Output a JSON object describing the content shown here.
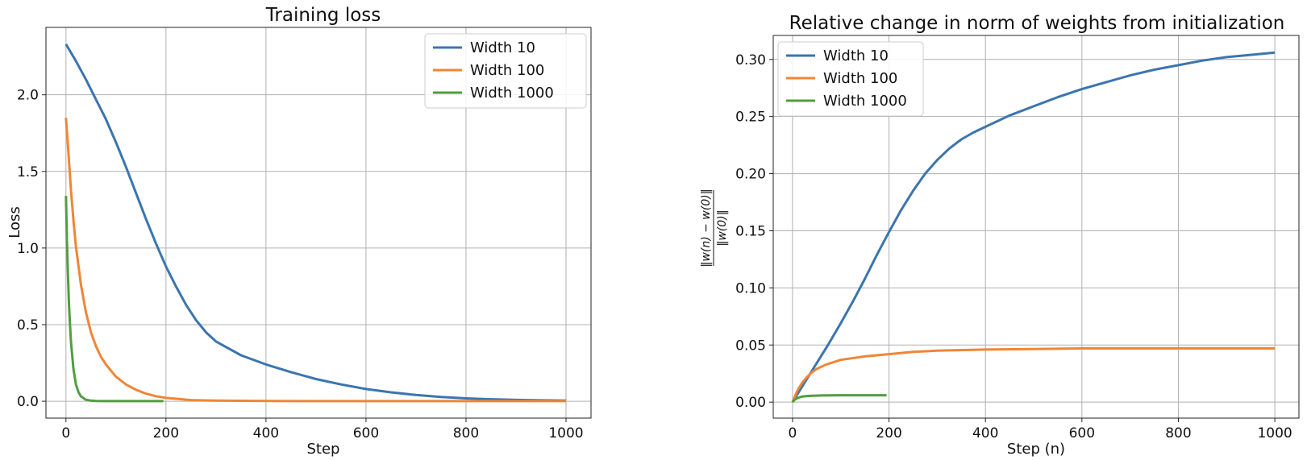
{
  "chart_data": [
    {
      "type": "line",
      "title": "Training loss",
      "xlabel": "Step",
      "ylabel": "Loss",
      "xlim": [
        -40,
        1050
      ],
      "ylim": [
        -0.11,
        2.44
      ],
      "xticks": [
        0,
        200,
        400,
        600,
        800,
        1000
      ],
      "yticks": [
        0.0,
        0.5,
        1.0,
        1.5,
        2.0
      ],
      "xtick_labels": [
        "0",
        "200",
        "400",
        "600",
        "800",
        "1000"
      ],
      "ytick_labels": [
        "0.0",
        "0.5",
        "1.0",
        "1.5",
        "2.0"
      ],
      "grid": true,
      "legend": "top-right",
      "series": [
        {
          "name": "Width 10",
          "color": "#3b75af",
          "x": [
            0,
            20,
            40,
            60,
            80,
            100,
            120,
            140,
            160,
            180,
            200,
            220,
            240,
            260,
            280,
            300,
            350,
            400,
            450,
            500,
            550,
            600,
            650,
            700,
            750,
            800,
            850,
            900,
            950,
            1000
          ],
          "y": [
            2.33,
            2.22,
            2.1,
            1.97,
            1.84,
            1.69,
            1.53,
            1.36,
            1.19,
            1.03,
            0.88,
            0.75,
            0.63,
            0.53,
            0.45,
            0.39,
            0.3,
            0.24,
            0.19,
            0.145,
            0.11,
            0.08,
            0.058,
            0.041,
            0.028,
            0.019,
            0.013,
            0.009,
            0.006,
            0.004
          ]
        },
        {
          "name": "Width 100",
          "color": "#ef8636",
          "x": [
            0,
            5,
            10,
            15,
            20,
            30,
            40,
            50,
            60,
            70,
            80,
            100,
            120,
            140,
            160,
            180,
            200,
            250,
            300,
            400,
            500,
            600,
            700,
            800,
            900,
            1000
          ],
          "y": [
            1.85,
            1.62,
            1.38,
            1.18,
            1.01,
            0.76,
            0.58,
            0.45,
            0.36,
            0.29,
            0.24,
            0.16,
            0.11,
            0.075,
            0.05,
            0.033,
            0.022,
            0.008,
            0.004,
            0.002,
            0.001,
            0.001,
            0.001,
            0.001,
            0.001,
            0.001
          ]
        },
        {
          "name": "Width 1000",
          "color": "#519e3e",
          "x": [
            0,
            2,
            4,
            6,
            8,
            10,
            15,
            20,
            25,
            30,
            40,
            50,
            60,
            80,
            100,
            150,
            195
          ],
          "y": [
            1.34,
            1.05,
            0.82,
            0.64,
            0.5,
            0.39,
            0.21,
            0.11,
            0.06,
            0.032,
            0.01,
            0.004,
            0.002,
            0.001,
            0.001,
            0.001,
            0.001
          ]
        }
      ]
    },
    {
      "type": "line",
      "title": "Relative change in norm of weights from initialization",
      "xlabel": "Step (n)",
      "ylabel": "‖w(n) − w(0)‖ / ‖w(0)‖",
      "ylabel_numerator": "‖w(n) − w(0)‖",
      "ylabel_denominator": "‖w(0)‖",
      "xlim": [
        -40,
        1050
      ],
      "ylim": [
        -0.014,
        0.321
      ],
      "xticks": [
        0,
        200,
        400,
        600,
        800,
        1000
      ],
      "yticks": [
        0.0,
        0.05,
        0.1,
        0.15,
        0.2,
        0.25,
        0.3
      ],
      "xtick_labels": [
        "0",
        "200",
        "400",
        "600",
        "800",
        "1000"
      ],
      "ytick_labels": [
        "0.00",
        "0.05",
        "0.10",
        "0.15",
        "0.20",
        "0.25",
        "0.30"
      ],
      "grid": true,
      "legend": "top-left",
      "series": [
        {
          "name": "Width 10",
          "color": "#3b75af",
          "x": [
            0,
            25,
            50,
            75,
            100,
            125,
            150,
            175,
            200,
            225,
            250,
            275,
            300,
            325,
            350,
            375,
            400,
            450,
            500,
            550,
            600,
            650,
            700,
            750,
            800,
            850,
            900,
            950,
            1000
          ],
          "y": [
            0.0,
            0.017,
            0.034,
            0.051,
            0.069,
            0.088,
            0.108,
            0.129,
            0.149,
            0.168,
            0.185,
            0.2,
            0.212,
            0.222,
            0.23,
            0.236,
            0.241,
            0.251,
            0.259,
            0.267,
            0.274,
            0.28,
            0.286,
            0.291,
            0.295,
            0.299,
            0.302,
            0.304,
            0.306
          ]
        },
        {
          "name": "Width 100",
          "color": "#ef8636",
          "x": [
            0,
            10,
            20,
            30,
            40,
            50,
            70,
            100,
            150,
            200,
            250,
            300,
            400,
            500,
            600,
            700,
            800,
            900,
            1000
          ],
          "y": [
            0.0,
            0.01,
            0.017,
            0.022,
            0.026,
            0.029,
            0.033,
            0.037,
            0.04,
            0.042,
            0.044,
            0.045,
            0.046,
            0.0465,
            0.047,
            0.047,
            0.047,
            0.047,
            0.047
          ]
        },
        {
          "name": "Width 1000",
          "color": "#519e3e",
          "x": [
            0,
            5,
            10,
            15,
            20,
            30,
            40,
            60,
            80,
            100,
            150,
            195
          ],
          "y": [
            0.0,
            0.0022,
            0.0035,
            0.0043,
            0.0048,
            0.0053,
            0.0056,
            0.0058,
            0.0059,
            0.006,
            0.006,
            0.006
          ]
        }
      ]
    }
  ]
}
